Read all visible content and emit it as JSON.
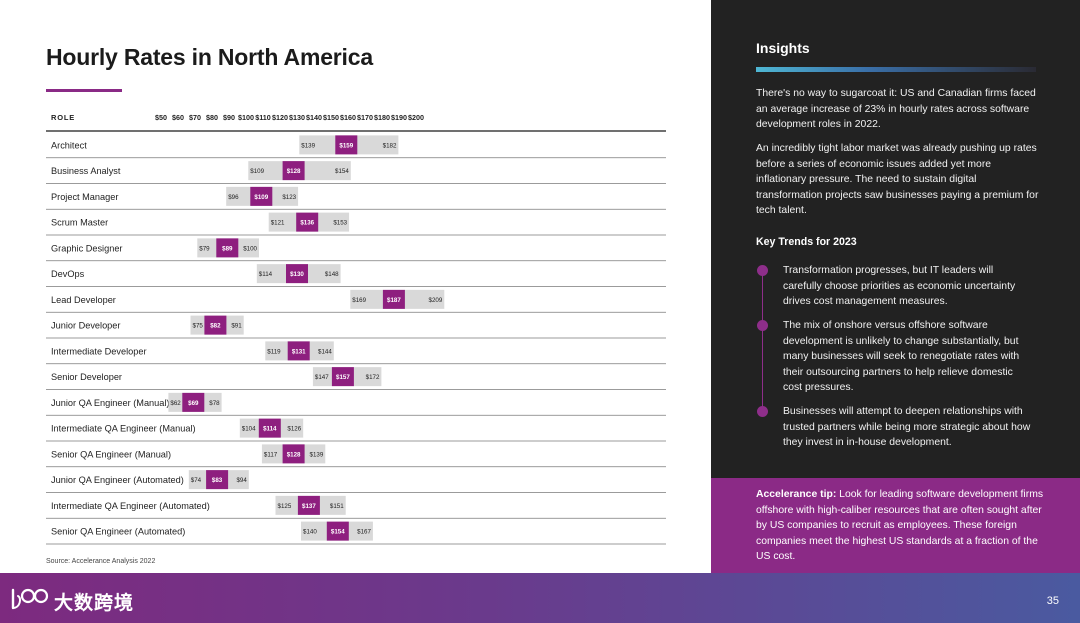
{
  "title": "Hourly Rates in North America",
  "source": "Source: Accelerance Analysis 2022",
  "page_number": "35",
  "logo_text": "大数跨境",
  "colors": {
    "accent": "#8a2a86",
    "range_bar": "#d9d9d9",
    "mid_bar": "#8e1f7f",
    "panel_dark": "#222222",
    "panel_purple": "#8b2a86"
  },
  "insights": {
    "title": "Insights",
    "paragraphs": [
      "There's no way to sugarcoat it: US and Canadian firms faced an average increase of 23% in hourly rates across software development roles in 2022.",
      "An incredibly tight labor market was already pushing up rates before a series of economic issues added yet more inflationary pressure. The need to sustain digital transformation projects saw businesses paying a premium for tech talent."
    ],
    "trends_title": "Key Trends for 2023",
    "trends": [
      "Transformation progresses, but IT leaders will carefully choose priorities as economic uncertainty drives cost management measures.",
      "The mix of onshore versus offshore software development is unlikely to change substantially, but many businesses will seek to renegotiate rates with their outsourcing partners to help relieve domestic cost pressures.",
      "Businesses will attempt to deepen relationships with trusted partners while being more strategic about how they invest in in-house development."
    ],
    "tip_label": "Accelerance tip:",
    "tip_text": " Look for leading software development firms offshore with high-caliber resources that are often sought after by US companies to recruit as employees. These foreign companies meet the highest US standards at a fraction of the US cost."
  },
  "chart_data": {
    "type": "bar",
    "column_header": "ROLE",
    "x_ticks": [
      "$50",
      "$60",
      "$70",
      "$80",
      "$90",
      "$100",
      "$110",
      "$120",
      "$130",
      "$140",
      "$150",
      "$160",
      "$170",
      "$180",
      "$190",
      "$200"
    ],
    "xlim": [
      50,
      200
    ],
    "roles": [
      {
        "label": "Architect",
        "low": 139,
        "mid": 159,
        "high": 182
      },
      {
        "label": "Business Analyst",
        "low": 109,
        "mid": 128,
        "high": 154
      },
      {
        "label": "Project Manager",
        "low": 96,
        "mid": 109,
        "high": 123
      },
      {
        "label": "Scrum Master",
        "low": 121,
        "mid": 136,
        "high": 153
      },
      {
        "label": "Graphic Designer",
        "low": 79,
        "mid": 89,
        "high": 100
      },
      {
        "label": "DevOps",
        "low": 114,
        "mid": 130,
        "high": 148
      },
      {
        "label": "Lead Developer",
        "low": 169,
        "mid": 187,
        "high": 209
      },
      {
        "label": "Junior Developer",
        "low": 75,
        "mid": 82,
        "high": 91
      },
      {
        "label": "Intermediate Developer",
        "low": 119,
        "mid": 131,
        "high": 144
      },
      {
        "label": "Senior Developer",
        "low": 147,
        "mid": 157,
        "high": 172
      },
      {
        "label": "Junior QA Engineer (Manual)",
        "low": 62,
        "mid": 69,
        "high": 78
      },
      {
        "label": "Intermediate QA Engineer (Manual)",
        "low": 104,
        "mid": 114,
        "high": 126
      },
      {
        "label": "Senior QA Engineer (Manual)",
        "low": 117,
        "mid": 128,
        "high": 139
      },
      {
        "label": "Junior QA Engineer (Automated)",
        "low": 74,
        "mid": 83,
        "high": 94
      },
      {
        "label": "Intermediate QA Engineer (Automated)",
        "low": 125,
        "mid": 137,
        "high": 151
      },
      {
        "label": "Senior QA Engineer (Automated)",
        "low": 140,
        "mid": 154,
        "high": 167
      }
    ]
  }
}
